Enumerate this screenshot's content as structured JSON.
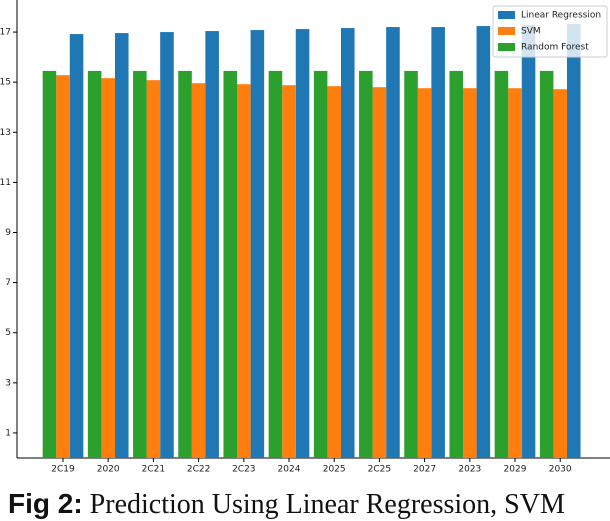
{
  "chart_data": {
    "type": "bar",
    "categories": [
      "2C19",
      "2020",
      "2C21",
      "2C22",
      "2C23",
      "2024",
      "2025",
      "2C25",
      "2027",
      "2023",
      "2029",
      "2030"
    ],
    "series": [
      {
        "name": "Linear Regression",
        "color": "#1f77b4",
        "values": [
          16.92,
          16.96,
          17.0,
          17.04,
          17.08,
          17.12,
          17.16,
          17.2,
          17.2,
          17.24,
          17.28,
          17.32
        ]
      },
      {
        "name": "SVM",
        "color": "#ff7f0e",
        "values": [
          15.28,
          15.16,
          15.08,
          14.96,
          14.92,
          14.88,
          14.84,
          14.8,
          14.76,
          14.76,
          14.76,
          14.72
        ]
      },
      {
        "name": "Random Forest",
        "color": "#2ca02c",
        "values": [
          15.45,
          15.45,
          15.45,
          15.45,
          15.45,
          15.45,
          15.45,
          15.45,
          15.45,
          15.45,
          15.45,
          15.45
        ]
      }
    ],
    "ylim": [
      0,
      18.2
    ],
    "yticks": [
      1,
      3,
      5,
      7,
      9,
      11,
      13,
      15,
      17
    ],
    "legend": "upper right"
  },
  "caption": {
    "label": "Fig 2:",
    "text": "Prediction Using Linear Regression, SVM"
  }
}
